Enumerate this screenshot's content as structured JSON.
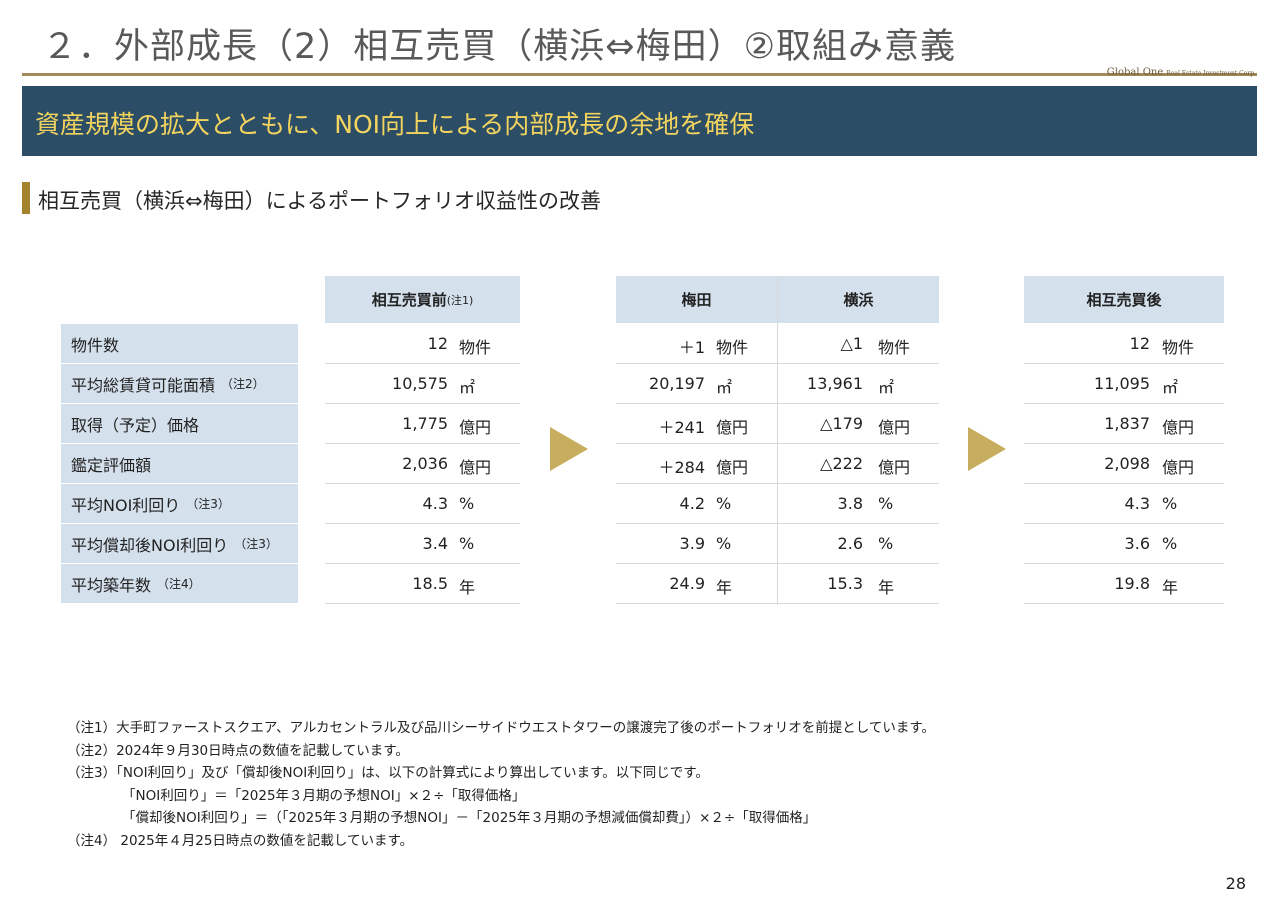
{
  "header": {
    "title": "２．外部成長（2）相互売買（横浜⇔梅田）②取組み意義",
    "logo_main": "Global One",
    "logo_sub": "Real Estate Investment Corp."
  },
  "banner": {
    "text": "資産規模の拡大とともに、NOI向上による内部成長の余地を確保"
  },
  "subhead": {
    "text": "相互売買（横浜⇔梅田）によるポートフォリオ収益性の改善"
  },
  "table": {
    "row_labels": [
      {
        "label": "物件数",
        "note": ""
      },
      {
        "label": "平均総賃貸可能面積",
        "note": "（注2）"
      },
      {
        "label": "取得（予定）価格",
        "note": ""
      },
      {
        "label": "鑑定評価額",
        "note": ""
      },
      {
        "label": "平均NOI利回り",
        "note": "（注3）"
      },
      {
        "label": "平均償却後NOI利回り",
        "note": "（注3）"
      },
      {
        "label": "平均築年数",
        "note": "（注4）"
      }
    ],
    "columns": [
      {
        "header": "相互売買前",
        "header_note": "(注1)",
        "values": [
          "12",
          "10,575",
          "1,775",
          "2,036",
          "4.3",
          "3.4",
          "18.5"
        ]
      },
      {
        "header": "梅田",
        "header_note": "",
        "values": [
          "＋1",
          "20,197",
          "＋241",
          "＋284",
          "4.2",
          "3.9",
          "24.9"
        ]
      },
      {
        "header": "横浜",
        "header_note": "",
        "values": [
          "△1",
          "13,961",
          "△179",
          "△222",
          "3.8",
          "2.6",
          "15.3"
        ]
      },
      {
        "header": "相互売買後",
        "header_note": "",
        "values": [
          "12",
          "11,095",
          "1,837",
          "2,098",
          "4.3",
          "3.6",
          "19.8"
        ]
      }
    ],
    "units": [
      "物件",
      "㎡",
      "億円",
      "億円",
      "%",
      "%",
      "年"
    ]
  },
  "notes": [
    "（注1）大手町ファーストスクエア、アルカセントラル及び品川シーサイドウエストタワーの譲渡完了後のポートフォリオを前提としています。",
    "（注2）2024年９月30日時点の数値を記載しています。",
    "（注3）「NOI利回り」及び「償却後NOI利回り」は、以下の計算式により算出しています。以下同じです。",
    "「NOI利回り」＝「2025年３月期の予想NOI」×２÷「取得価格」",
    "「償却後NOI利回り」＝（「2025年３月期の予想NOI」－「2025年３月期の予想減価償却費」）×２÷「取得価格」",
    "（注4） 2025年４月25日時点の数値を記載しています。"
  ],
  "page_number": "28",
  "colors": {
    "banner_bg": "#2b4d65",
    "banner_text": "#f3d45f",
    "header_cell": "#d4e1ec",
    "gold": "#a08a5a",
    "arrow": "#c7ad5e"
  }
}
